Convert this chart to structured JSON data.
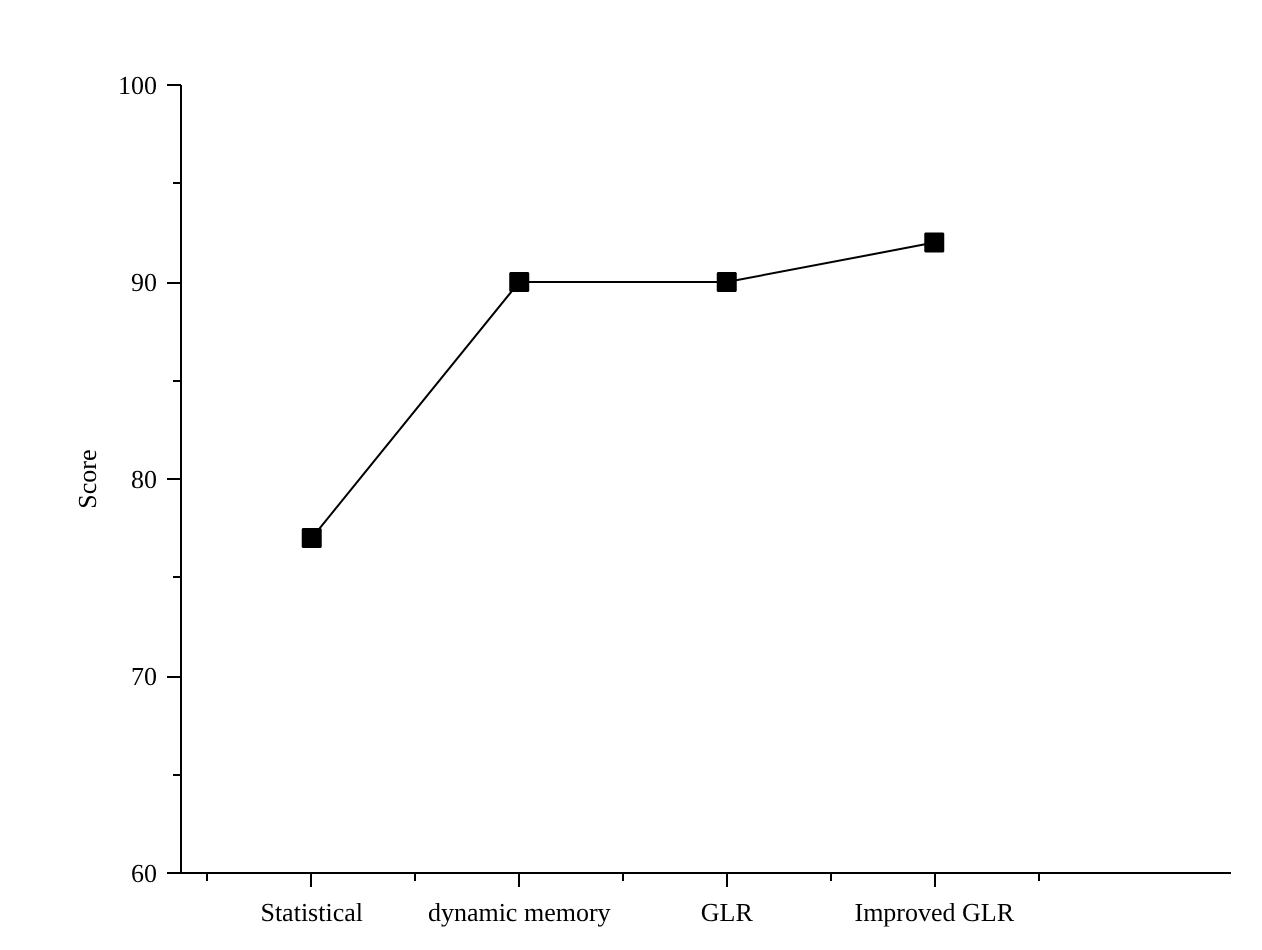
{
  "chart_data": {
    "type": "line",
    "ylabel": "Score",
    "categories": [
      "Statistical",
      "dynamic memory",
      "GLR",
      "Improved GLR"
    ],
    "series": [
      {
        "color": "#000000",
        "values": [
          77,
          90,
          90,
          92
        ]
      }
    ],
    "ylim": [
      60,
      100
    ],
    "yticks": [
      60,
      70,
      80,
      90,
      100
    ],
    "marker": "square",
    "line_style": "solid"
  }
}
